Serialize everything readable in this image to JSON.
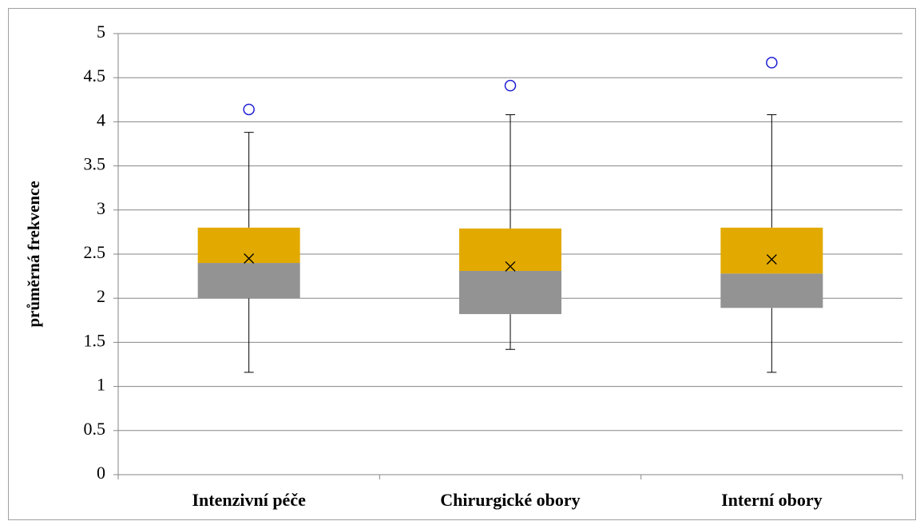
{
  "chart_data": {
    "type": "box",
    "y_label": "průměrná frekvence",
    "categories": [
      "Intenzivní péče",
      "Chirurgické obory",
      "Interní obory"
    ],
    "boxes": [
      {
        "min": 1.16,
        "q1": 2.0,
        "median": 2.4,
        "q3": 2.8,
        "max": 3.88,
        "mean": 2.45,
        "outliers": [
          4.14
        ]
      },
      {
        "min": 1.42,
        "q1": 1.82,
        "median": 2.31,
        "q3": 2.79,
        "max": 4.08,
        "mean": 2.36,
        "outliers": [
          4.41
        ]
      },
      {
        "min": 1.16,
        "q1": 1.89,
        "median": 2.28,
        "q3": 2.8,
        "max": 4.08,
        "mean": 2.44,
        "outliers": [
          4.67
        ]
      }
    ],
    "lower_color": "#939393",
    "upper_color": "#e2aa00",
    "outlier_color": "#1f1fd6",
    "ylim": [
      0,
      5
    ],
    "yticks": [
      0,
      0.5,
      1,
      1.5,
      2,
      2.5,
      3,
      3.5,
      4,
      4.5,
      5
    ],
    "grid": true
  }
}
